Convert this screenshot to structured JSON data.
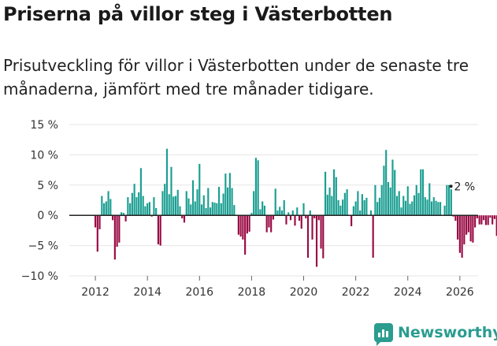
{
  "title": "Priserna på villor steg i Västerbotten",
  "subtitle": "Prisutveckling för villor i Västerbotten under de senaste tre månaderna, jämfört med tre månader tidigare.",
  "brand": {
    "name": "Newsworthy",
    "icon": "newsworthy-logo-icon"
  },
  "colors": {
    "positive": "#1a9e91",
    "negative": "#990a44",
    "grid": "#e5e5e5",
    "zero": "#222222",
    "brand": "#2a9d8f"
  },
  "chart_data": {
    "type": "bar",
    "title": "Priserna på villor steg i Västerbotten",
    "xlabel": "",
    "ylabel": "",
    "ylim": [
      -10,
      15
    ],
    "yticks": [
      -10,
      -5,
      0,
      5,
      10,
      15
    ],
    "ytick_labels": [
      "−10 %",
      "−5 %",
      "0 %",
      "5 %",
      "10 %",
      "15 %"
    ],
    "xlim": [
      2011.0,
      2026.7
    ],
    "xticks": [
      2012,
      2014,
      2016,
      2018,
      2020,
      2022,
      2024,
      2026
    ],
    "xtick_labels": [
      "2012",
      "2014",
      "2016",
      "2018",
      "2020",
      "2022",
      "2024",
      "2026"
    ],
    "grid": true,
    "series": [
      {
        "name": "Prisutveckling",
        "start": 2012.0,
        "step": 0.0833333,
        "values": [
          -2,
          -6,
          -2.3,
          3.2,
          2,
          2.3,
          4,
          2.7,
          -0.8,
          -7.3,
          -5.2,
          -4.5,
          0.5,
          0.4,
          -1,
          3,
          2,
          3.7,
          5.2,
          3,
          3.8,
          7.8,
          3.2,
          1.5,
          2,
          2.2,
          -0.2,
          3,
          1.2,
          -4.8,
          -5,
          4,
          5.2,
          11,
          3.5,
          8,
          3.1,
          3.2,
          4.2,
          1.5,
          -0.5,
          -1.2,
          4,
          2.8,
          1.8,
          5.8,
          2.3,
          4.3,
          8.5,
          1.8,
          3.3,
          1.2,
          4.5,
          1.3,
          2.2,
          2.1,
          2,
          4.7,
          2,
          3.6,
          6.9,
          4.6,
          7,
          4.5,
          1.7,
          0,
          -3.2,
          -3.5,
          -4,
          -6.5,
          -3,
          -2.7,
          0.4,
          4,
          9.5,
          9.1,
          1,
          2.3,
          1.6,
          -2.8,
          -2,
          -2.8,
          -0.7,
          4.4,
          0.8,
          1.4,
          0.8,
          2.5,
          -1.5,
          0.5,
          -0.8,
          0.8,
          -1.7,
          1.3,
          -0.9,
          -2.2,
          2,
          -0.5,
          -7,
          0.8,
          -4,
          -0.5,
          -8.5,
          -0.8,
          -5.5,
          -7.1,
          7.2,
          3.4,
          4.6,
          3.2,
          7.6,
          6.3,
          2.5,
          1.6,
          2.6,
          3.7,
          4.3,
          0,
          -1.8,
          1.5,
          2.3,
          4,
          0.8,
          3.5,
          2.5,
          2.9,
          0,
          0.8,
          -7,
          5,
          2.2,
          2.9,
          5,
          8.2,
          10.8,
          5.5,
          4.6,
          9.2,
          7.5,
          3.2,
          4,
          1.3,
          3.2,
          2.4,
          4.8,
          1.9,
          2.3,
          3.3,
          5,
          3.7,
          7.6,
          7.6,
          3,
          2.6,
          5.3,
          2.3,
          3,
          2.4,
          2.2,
          2.2,
          -0.1,
          1.6,
          5,
          5,
          4.3,
          -0.2,
          -0.9,
          -4,
          -6.2,
          -7,
          -4.8,
          -3.2,
          -2.8,
          -4.3,
          -4.5,
          -2,
          -0.5,
          -1.5,
          -1.5,
          -0.8,
          -1.6,
          -1.6,
          -0.4,
          -1.5,
          -0.6,
          -3.4,
          -2.2,
          0.8,
          4.8,
          3.6,
          -1.5,
          -0.8,
          -1.2,
          0.2,
          -1.8,
          -1.2,
          -0.4,
          -1,
          -3,
          -3,
          -2,
          -1.3,
          -1.7,
          -2,
          -1,
          -2.9,
          1.9,
          0,
          4.5,
          2,
          3.5,
          0.7,
          -1.8,
          -5.2,
          -6.2,
          2
        ]
      }
    ],
    "annotations": [
      {
        "x": 2025.9,
        "y": 4.8,
        "text": "2 %"
      }
    ]
  }
}
